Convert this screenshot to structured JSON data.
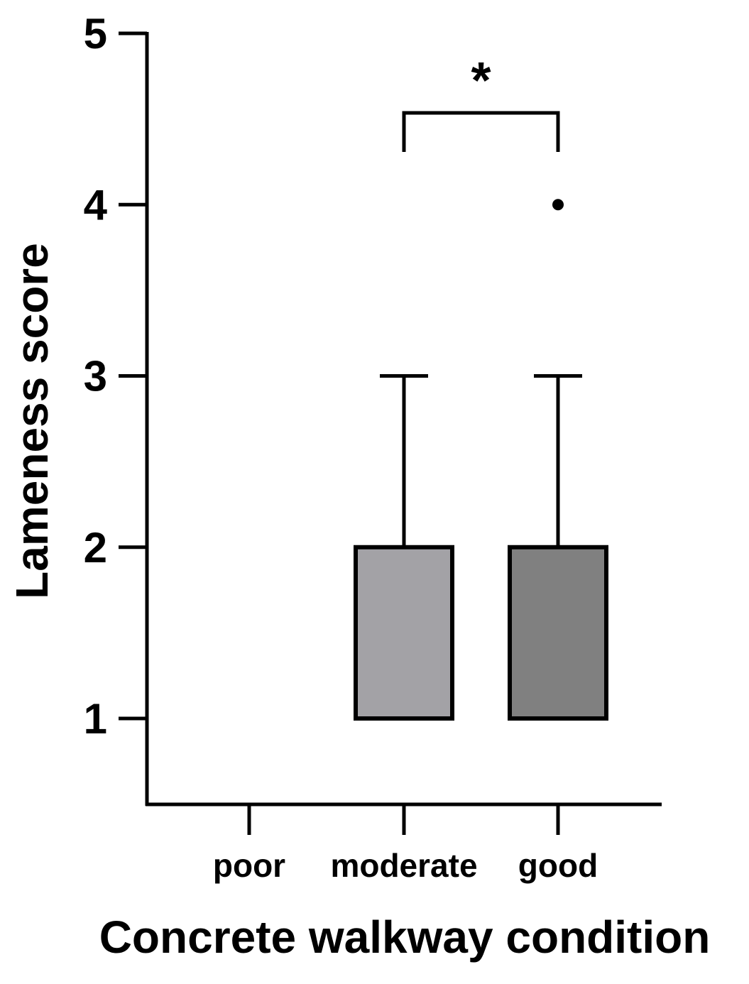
{
  "chart_data": {
    "type": "box",
    "xlabel": "Concrete walkway condition",
    "ylabel": "Lameness score",
    "ylim": [
      0.5,
      5
    ],
    "yticks": [
      1,
      2,
      3,
      4,
      5
    ],
    "categories": [
      "poor",
      "moderate",
      "good"
    ],
    "boxes": [
      {
        "category": "poor",
        "min": null,
        "q1": null,
        "median": null,
        "q3": null,
        "max": null,
        "outliers": [],
        "color": "#ffffff"
      },
      {
        "category": "moderate",
        "min": 1,
        "q1": 1,
        "median": 1,
        "q3": 2,
        "max": 3,
        "outliers": [],
        "color": "#a3a2a6"
      },
      {
        "category": "good",
        "min": 1,
        "q1": 1,
        "median": 1,
        "q3": 2,
        "max": 3,
        "outliers": [
          4
        ],
        "color": "#808080"
      }
    ],
    "significance": [
      {
        "from": "moderate",
        "to": "good",
        "label": "*"
      }
    ],
    "grid": false,
    "legend": "none"
  }
}
